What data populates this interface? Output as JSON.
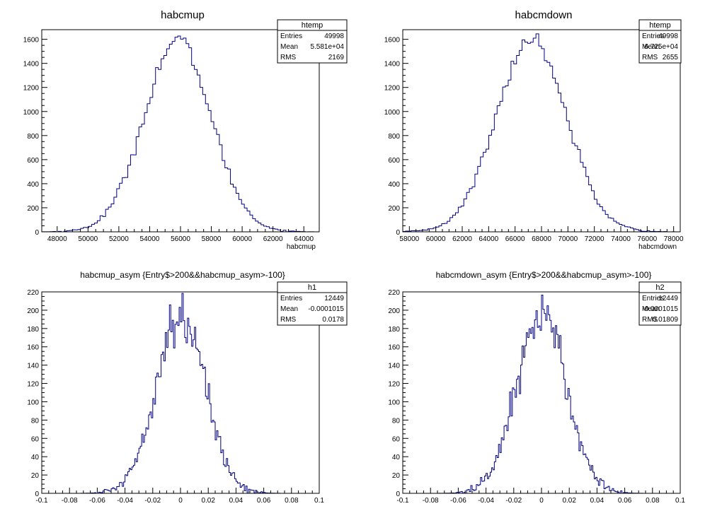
{
  "chart_data": [
    {
      "type": "bar",
      "title": "habcmup",
      "xlabel": "habcmup",
      "ylabel": "",
      "xlim": [
        47000,
        65000
      ],
      "ylim": [
        0,
        1680
      ],
      "xticks": [
        48000,
        50000,
        52000,
        54000,
        56000,
        58000,
        60000,
        62000,
        64000
      ],
      "xtick_labels": [
        "48000",
        "50000",
        "52000",
        "54000",
        "56000",
        "58000",
        "60000",
        "62000",
        "64000"
      ],
      "yticks": [
        0,
        200,
        400,
        600,
        800,
        1000,
        1200,
        1400,
        1600
      ],
      "ytick_labels": [
        "0",
        "200",
        "400",
        "600",
        "800",
        "1000",
        "1200",
        "1400",
        "1600"
      ],
      "stats": {
        "name": "htemp",
        "rows": [
          [
            "Entries",
            "49998"
          ],
          [
            "Mean",
            "5.581e+04"
          ],
          [
            "RMS",
            "2169"
          ]
        ]
      },
      "series": [
        {
          "mean": 55810,
          "rms": 2169,
          "entries": 49998,
          "bins": 100,
          "peak": 1590
        }
      ]
    },
    {
      "type": "bar",
      "title": "habcmdown",
      "xlabel": "habcmdown",
      "ylabel": "",
      "xlim": [
        57500,
        78500
      ],
      "ylim": [
        0,
        1680
      ],
      "xticks": [
        58000,
        60000,
        62000,
        64000,
        66000,
        68000,
        70000,
        72000,
        74000,
        76000,
        78000
      ],
      "xtick_labels": [
        "58000",
        "60000",
        "62000",
        "64000",
        "66000",
        "68000",
        "70000",
        "72000",
        "74000",
        "76000",
        "78000"
      ],
      "yticks": [
        0,
        200,
        400,
        600,
        800,
        1000,
        1200,
        1400,
        1600
      ],
      "ytick_labels": [
        "0",
        "200",
        "400",
        "600",
        "800",
        "1000",
        "1200",
        "1400",
        "1600"
      ],
      "stats": {
        "name": "htemp",
        "rows": [
          [
            "Entries",
            "49998"
          ],
          [
            "Mean",
            "6.725e+04"
          ],
          [
            "RMS",
            "2655"
          ]
        ]
      },
      "series": [
        {
          "mean": 67250,
          "rms": 2655,
          "entries": 49998,
          "bins": 100,
          "peak": 1600
        }
      ]
    },
    {
      "type": "bar",
      "title": "habcmup_asym {Entry$>200&&habcmup_asym>-100}",
      "xlabel": "",
      "ylabel": "",
      "xlim": [
        -0.1,
        0.1
      ],
      "ylim": [
        0,
        220
      ],
      "xticks": [
        -0.1,
        -0.08,
        -0.06,
        -0.04,
        -0.02,
        0,
        0.02,
        0.04,
        0.06,
        0.08,
        0.1
      ],
      "xtick_labels": [
        "-0.1",
        "-0.08",
        "-0.06",
        "-0.04",
        "-0.02",
        "0",
        "0.02",
        "0.04",
        "0.06",
        "0.08",
        "0.1"
      ],
      "yticks": [
        0,
        20,
        40,
        60,
        80,
        100,
        120,
        140,
        160,
        180,
        200,
        220
      ],
      "ytick_labels": [
        "0",
        "20",
        "40",
        "60",
        "80",
        "100",
        "120",
        "140",
        "160",
        "180",
        "200",
        "220"
      ],
      "stats": {
        "name": "h1",
        "rows": [
          [
            "Entries",
            "12449"
          ],
          [
            "Mean",
            "-0.0001015"
          ],
          [
            "RMS",
            "0.0178"
          ]
        ]
      },
      "series": [
        {
          "mean": -0.0001015,
          "rms": 0.0178,
          "entries": 12449,
          "bins": 200,
          "peak": 195
        }
      ]
    },
    {
      "type": "bar",
      "title": "habcmdown_asym {Entry$>200&&habcmup_asym>-100}",
      "xlabel": "",
      "ylabel": "",
      "xlim": [
        -0.1,
        0.1
      ],
      "ylim": [
        0,
        220
      ],
      "xticks": [
        -0.1,
        -0.08,
        -0.06,
        -0.04,
        -0.02,
        0,
        0.02,
        0.04,
        0.06,
        0.08,
        0.1
      ],
      "xtick_labels": [
        "-0.1",
        "-0.08",
        "-0.06",
        "-0.04",
        "-0.02",
        "0",
        "0.02",
        "0.04",
        "0.06",
        "0.08",
        "0.1"
      ],
      "yticks": [
        0,
        20,
        40,
        60,
        80,
        100,
        120,
        140,
        160,
        180,
        200,
        220
      ],
      "ytick_labels": [
        "0",
        "20",
        "40",
        "60",
        "80",
        "100",
        "120",
        "140",
        "160",
        "180",
        "200",
        "220"
      ],
      "stats": {
        "name": "h2",
        "rows": [
          [
            "Entries",
            "12449"
          ],
          [
            "Mean",
            "-0.0001015"
          ],
          [
            "RMS",
            "0.01809"
          ]
        ]
      },
      "series": [
        {
          "mean": -0.0001015,
          "rms": 0.01809,
          "entries": 12449,
          "bins": 200,
          "peak": 195
        }
      ]
    }
  ],
  "colors": {
    "histogram_line": "#000080",
    "frame": "#000000",
    "background": "#ffffff"
  }
}
